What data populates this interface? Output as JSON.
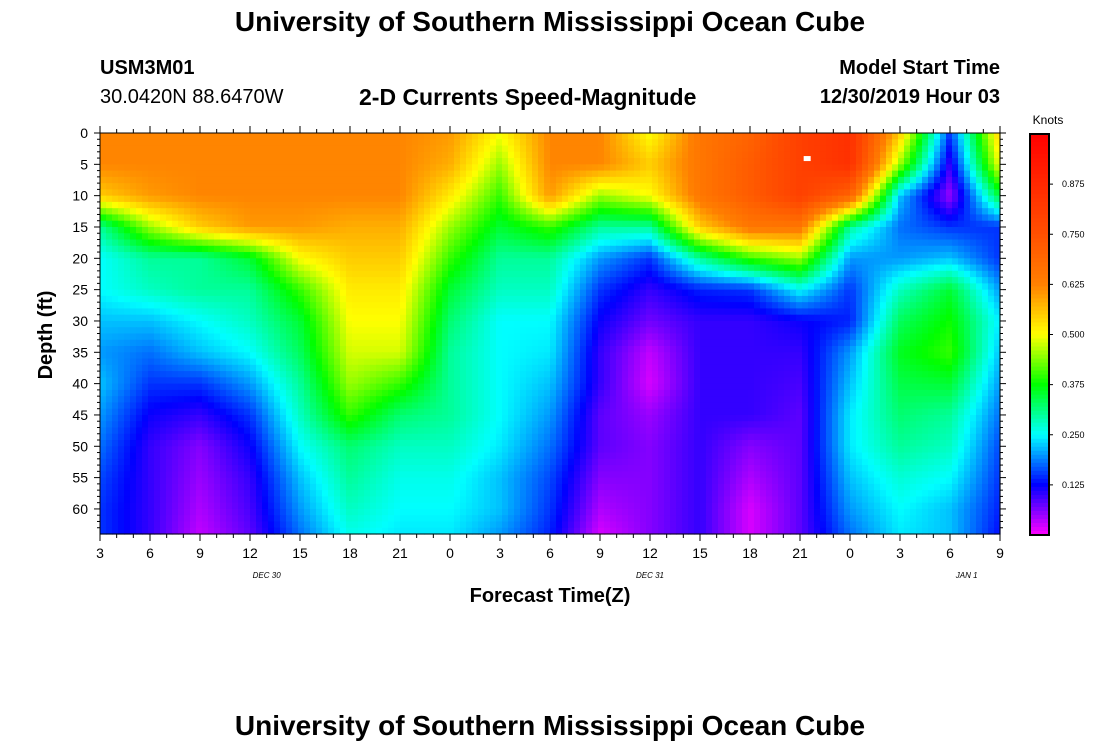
{
  "header": {
    "title": "University of Southern Mississippi Ocean Cube",
    "station_id": "USM3M01",
    "coordinates": "30.0420N 88.6470W",
    "subtitle": "2-D Currents Speed-Magnitude",
    "model_label": "Model Start Time",
    "model_time": "12/30/2019 Hour 03"
  },
  "footer": {
    "title": "University of Southern Mississippi Ocean Cube"
  },
  "chart_data": {
    "type": "heatmap",
    "title": "2-D Currents Speed-Magnitude",
    "xlabel": "Forecast Time(Z)",
    "ylabel": "Depth (ft)",
    "x_ticks": [
      "3",
      "6",
      "9",
      "12",
      "15",
      "18",
      "21",
      "0",
      "3",
      "6",
      "9",
      "12",
      "15",
      "18",
      "21",
      "0",
      "3",
      "6",
      "9"
    ],
    "x_range_hours": [
      0,
      54
    ],
    "date_labels": [
      {
        "text": "DEC 30",
        "hour": 10
      },
      {
        "text": "DEC 31",
        "hour": 33
      },
      {
        "text": "JAN 1",
        "hour": 52
      }
    ],
    "y_ticks": [
      "0",
      "5",
      "10",
      "15",
      "20",
      "25",
      "30",
      "35",
      "40",
      "45",
      "50",
      "55",
      "60"
    ],
    "y_range": [
      0,
      64
    ],
    "colorbar": {
      "label": "Knots",
      "range": [
        0,
        1.0
      ],
      "tick_labels": [
        "0.875",
        "0.750",
        "0.625",
        "0.500",
        "0.375",
        "0.250",
        "0.125"
      ],
      "tick_values": [
        0.875,
        0.75,
        0.625,
        0.5,
        0.375,
        0.25,
        0.125
      ],
      "color_stops": [
        {
          "v": 0.0,
          "c": "#ff00ff"
        },
        {
          "v": 0.125,
          "c": "#0000ff"
        },
        {
          "v": 0.25,
          "c": "#00ffff"
        },
        {
          "v": 0.375,
          "c": "#00ff00"
        },
        {
          "v": 0.5,
          "c": "#ffff00"
        },
        {
          "v": 0.625,
          "c": "#ff8000"
        },
        {
          "v": 0.75,
          "c": "#ff5000"
        },
        {
          "v": 1.0,
          "c": "#ff0000"
        }
      ]
    },
    "depths_ft": [
      0,
      5,
      10,
      15,
      20,
      25,
      30,
      35,
      40,
      45,
      50,
      55,
      60,
      64
    ],
    "times_h": [
      0,
      3,
      6,
      9,
      12,
      15,
      18,
      21,
      24,
      27,
      30,
      33,
      36,
      39,
      42,
      45,
      48,
      51,
      54
    ],
    "speed_knots": [
      [
        0.62,
        0.62,
        0.62,
        0.62,
        0.62,
        0.62,
        0.62,
        0.6,
        0.5,
        0.62,
        0.62,
        0.5,
        0.65,
        0.7,
        0.8,
        0.85,
        0.55,
        0.15,
        0.55
      ],
      [
        0.62,
        0.62,
        0.62,
        0.62,
        0.62,
        0.62,
        0.62,
        0.58,
        0.45,
        0.62,
        0.62,
        0.55,
        0.65,
        0.72,
        0.8,
        0.85,
        0.45,
        0.1,
        0.5
      ],
      [
        0.55,
        0.6,
        0.62,
        0.62,
        0.62,
        0.62,
        0.62,
        0.52,
        0.4,
        0.6,
        0.45,
        0.5,
        0.65,
        0.72,
        0.8,
        0.7,
        0.22,
        0.05,
        0.35
      ],
      [
        0.3,
        0.45,
        0.55,
        0.6,
        0.6,
        0.58,
        0.58,
        0.45,
        0.35,
        0.4,
        0.3,
        0.3,
        0.55,
        0.65,
        0.65,
        0.3,
        0.18,
        0.15,
        0.15
      ],
      [
        0.25,
        0.3,
        0.3,
        0.35,
        0.5,
        0.55,
        0.55,
        0.4,
        0.3,
        0.3,
        0.2,
        0.15,
        0.3,
        0.4,
        0.45,
        0.2,
        0.2,
        0.22,
        0.15
      ],
      [
        0.25,
        0.28,
        0.3,
        0.3,
        0.4,
        0.52,
        0.52,
        0.35,
        0.28,
        0.28,
        0.15,
        0.1,
        0.14,
        0.15,
        0.25,
        0.15,
        0.28,
        0.35,
        0.2
      ],
      [
        0.22,
        0.22,
        0.25,
        0.28,
        0.35,
        0.5,
        0.5,
        0.32,
        0.25,
        0.25,
        0.12,
        0.07,
        0.1,
        0.1,
        0.12,
        0.14,
        0.33,
        0.38,
        0.24
      ],
      [
        0.2,
        0.18,
        0.22,
        0.25,
        0.33,
        0.48,
        0.48,
        0.3,
        0.25,
        0.24,
        0.1,
        0.03,
        0.1,
        0.1,
        0.1,
        0.2,
        0.36,
        0.4,
        0.22
      ],
      [
        0.22,
        0.15,
        0.15,
        0.2,
        0.3,
        0.45,
        0.4,
        0.3,
        0.25,
        0.22,
        0.1,
        0.02,
        0.1,
        0.1,
        0.09,
        0.22,
        0.34,
        0.35,
        0.2
      ],
      [
        0.2,
        0.12,
        0.1,
        0.15,
        0.28,
        0.4,
        0.32,
        0.3,
        0.25,
        0.2,
        0.08,
        0.05,
        0.1,
        0.1,
        0.08,
        0.24,
        0.32,
        0.3,
        0.18
      ],
      [
        0.18,
        0.1,
        0.06,
        0.12,
        0.25,
        0.32,
        0.28,
        0.28,
        0.24,
        0.18,
        0.08,
        0.06,
        0.1,
        0.06,
        0.08,
        0.24,
        0.3,
        0.28,
        0.16
      ],
      [
        0.16,
        0.1,
        0.05,
        0.1,
        0.22,
        0.3,
        0.26,
        0.26,
        0.22,
        0.16,
        0.06,
        0.06,
        0.1,
        0.04,
        0.08,
        0.22,
        0.27,
        0.25,
        0.15
      ],
      [
        0.15,
        0.1,
        0.04,
        0.09,
        0.2,
        0.28,
        0.25,
        0.25,
        0.22,
        0.15,
        0.04,
        0.06,
        0.1,
        0.02,
        0.08,
        0.2,
        0.25,
        0.22,
        0.14
      ],
      [
        0.15,
        0.1,
        0.03,
        0.08,
        0.18,
        0.26,
        0.24,
        0.24,
        0.2,
        0.14,
        0.02,
        0.06,
        0.1,
        0.02,
        0.08,
        0.18,
        0.24,
        0.22,
        0.13
      ]
    ],
    "marker": {
      "label": "white marker",
      "hour": 42.4,
      "depth_ft": 4
    }
  }
}
